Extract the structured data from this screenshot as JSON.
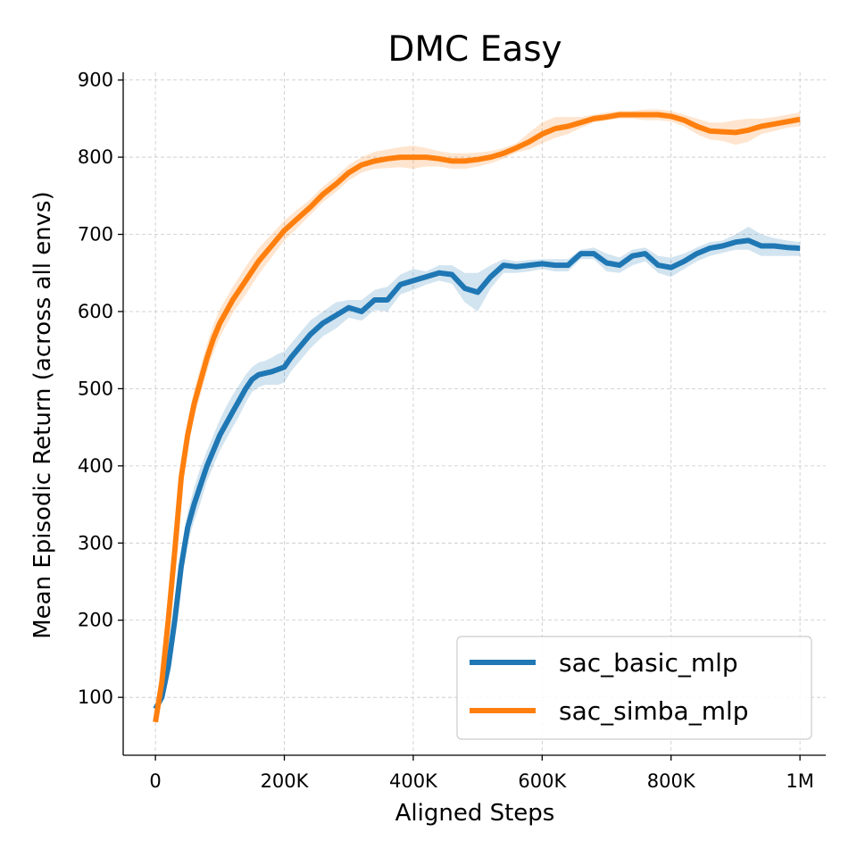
{
  "chart_data": {
    "type": "line",
    "title": "DMC Easy",
    "xlabel": "Aligned Steps",
    "ylabel": "Mean Episodic Return (across all envs)",
    "xlim": [
      -50000,
      1040000
    ],
    "ylim": [
      25,
      910
    ],
    "x_ticks": [
      0,
      200000,
      400000,
      600000,
      800000,
      1000000
    ],
    "x_tick_labels": [
      "0",
      "200K",
      "400K",
      "600K",
      "800K",
      "1M"
    ],
    "y_ticks": [
      100,
      200,
      300,
      400,
      500,
      600,
      700,
      800,
      900
    ],
    "y_tick_labels": [
      "100",
      "200",
      "300",
      "400",
      "500",
      "600",
      "700",
      "800",
      "900"
    ],
    "grid": true,
    "legend_position": "bottom-right",
    "series": [
      {
        "name": "sac_basic_mlp",
        "color": "#1f77b4",
        "x": [
          0,
          10000,
          20000,
          30000,
          40000,
          50000,
          60000,
          70000,
          80000,
          90000,
          100000,
          110000,
          120000,
          130000,
          140000,
          150000,
          160000,
          170000,
          180000,
          190000,
          200000,
          210000,
          220000,
          240000,
          260000,
          280000,
          300000,
          320000,
          340000,
          360000,
          380000,
          400000,
          420000,
          440000,
          460000,
          480000,
          500000,
          520000,
          540000,
          560000,
          580000,
          600000,
          620000,
          640000,
          660000,
          680000,
          700000,
          720000,
          740000,
          760000,
          780000,
          800000,
          820000,
          840000,
          860000,
          880000,
          900000,
          920000,
          940000,
          960000,
          980000,
          1000000
        ],
        "y": [
          85,
          100,
          140,
          200,
          270,
          320,
          350,
          375,
          400,
          420,
          440,
          455,
          470,
          485,
          500,
          512,
          518,
          520,
          522,
          525,
          528,
          540,
          550,
          570,
          585,
          595,
          605,
          600,
          615,
          615,
          635,
          640,
          645,
          650,
          648,
          630,
          625,
          645,
          660,
          658,
          660,
          662,
          660,
          660,
          675,
          675,
          663,
          660,
          672,
          675,
          660,
          657,
          665,
          675,
          682,
          685,
          690,
          692,
          685,
          685,
          683,
          682
        ],
        "upper": [
          90,
          108,
          152,
          215,
          290,
          340,
          372,
          398,
          420,
          440,
          460,
          477,
          492,
          505,
          518,
          528,
          534,
          536,
          540,
          545,
          548,
          558,
          568,
          588,
          600,
          612,
          615,
          615,
          628,
          632,
          648,
          655,
          652,
          660,
          660,
          650,
          650,
          660,
          668,
          665,
          667,
          668,
          668,
          668,
          680,
          683,
          675,
          670,
          680,
          683,
          672,
          670,
          675,
          683,
          690,
          692,
          700,
          710,
          700,
          695,
          692,
          690
        ],
        "lower": [
          80,
          92,
          128,
          185,
          250,
          300,
          328,
          352,
          380,
          400,
          420,
          435,
          450,
          465,
          482,
          496,
          502,
          505,
          505,
          505,
          508,
          522,
          532,
          552,
          568,
          578,
          592,
          588,
          602,
          600,
          622,
          628,
          635,
          640,
          636,
          612,
          600,
          630,
          650,
          650,
          652,
          655,
          652,
          652,
          668,
          668,
          652,
          650,
          660,
          665,
          650,
          645,
          655,
          665,
          672,
          676,
          680,
          680,
          672,
          672,
          672,
          672
        ]
      },
      {
        "name": "sac_simba_mlp",
        "color": "#ff7f0e",
        "x": [
          0,
          10000,
          20000,
          30000,
          40000,
          50000,
          60000,
          70000,
          80000,
          90000,
          100000,
          120000,
          140000,
          160000,
          180000,
          200000,
          220000,
          240000,
          260000,
          280000,
          300000,
          320000,
          340000,
          360000,
          380000,
          400000,
          420000,
          440000,
          460000,
          480000,
          500000,
          520000,
          540000,
          560000,
          580000,
          600000,
          620000,
          640000,
          660000,
          680000,
          700000,
          720000,
          740000,
          760000,
          780000,
          800000,
          820000,
          840000,
          860000,
          880000,
          900000,
          920000,
          940000,
          960000,
          980000,
          1000000
        ],
        "y": [
          68,
          120,
          200,
          290,
          385,
          440,
          480,
          510,
          540,
          565,
          585,
          615,
          640,
          665,
          685,
          705,
          720,
          735,
          752,
          765,
          780,
          790,
          795,
          798,
          800,
          800,
          800,
          798,
          795,
          795,
          797,
          800,
          805,
          812,
          820,
          830,
          837,
          840,
          845,
          850,
          852,
          855,
          855,
          855,
          855,
          853,
          848,
          840,
          834,
          833,
          832,
          835,
          840,
          843,
          846,
          849
        ],
        "upper": [
          73,
          128,
          212,
          305,
          400,
          458,
          498,
          528,
          558,
          583,
          603,
          632,
          658,
          682,
          700,
          718,
          732,
          745,
          762,
          775,
          790,
          800,
          807,
          810,
          813,
          815,
          812,
          808,
          805,
          805,
          806,
          808,
          812,
          818,
          832,
          845,
          852,
          852,
          852,
          855,
          858,
          860,
          860,
          862,
          862,
          860,
          855,
          850,
          845,
          845,
          848,
          850,
          850,
          852,
          855,
          858
        ],
        "lower": [
          63,
          112,
          188,
          275,
          370,
          422,
          462,
          492,
          522,
          547,
          567,
          598,
          622,
          648,
          670,
          692,
          708,
          725,
          742,
          755,
          770,
          780,
          785,
          786,
          787,
          785,
          788,
          788,
          785,
          785,
          788,
          792,
          798,
          806,
          810,
          818,
          825,
          830,
          838,
          845,
          848,
          850,
          850,
          848,
          848,
          846,
          840,
          830,
          823,
          821,
          816,
          820,
          830,
          834,
          838,
          840
        ]
      }
    ]
  }
}
